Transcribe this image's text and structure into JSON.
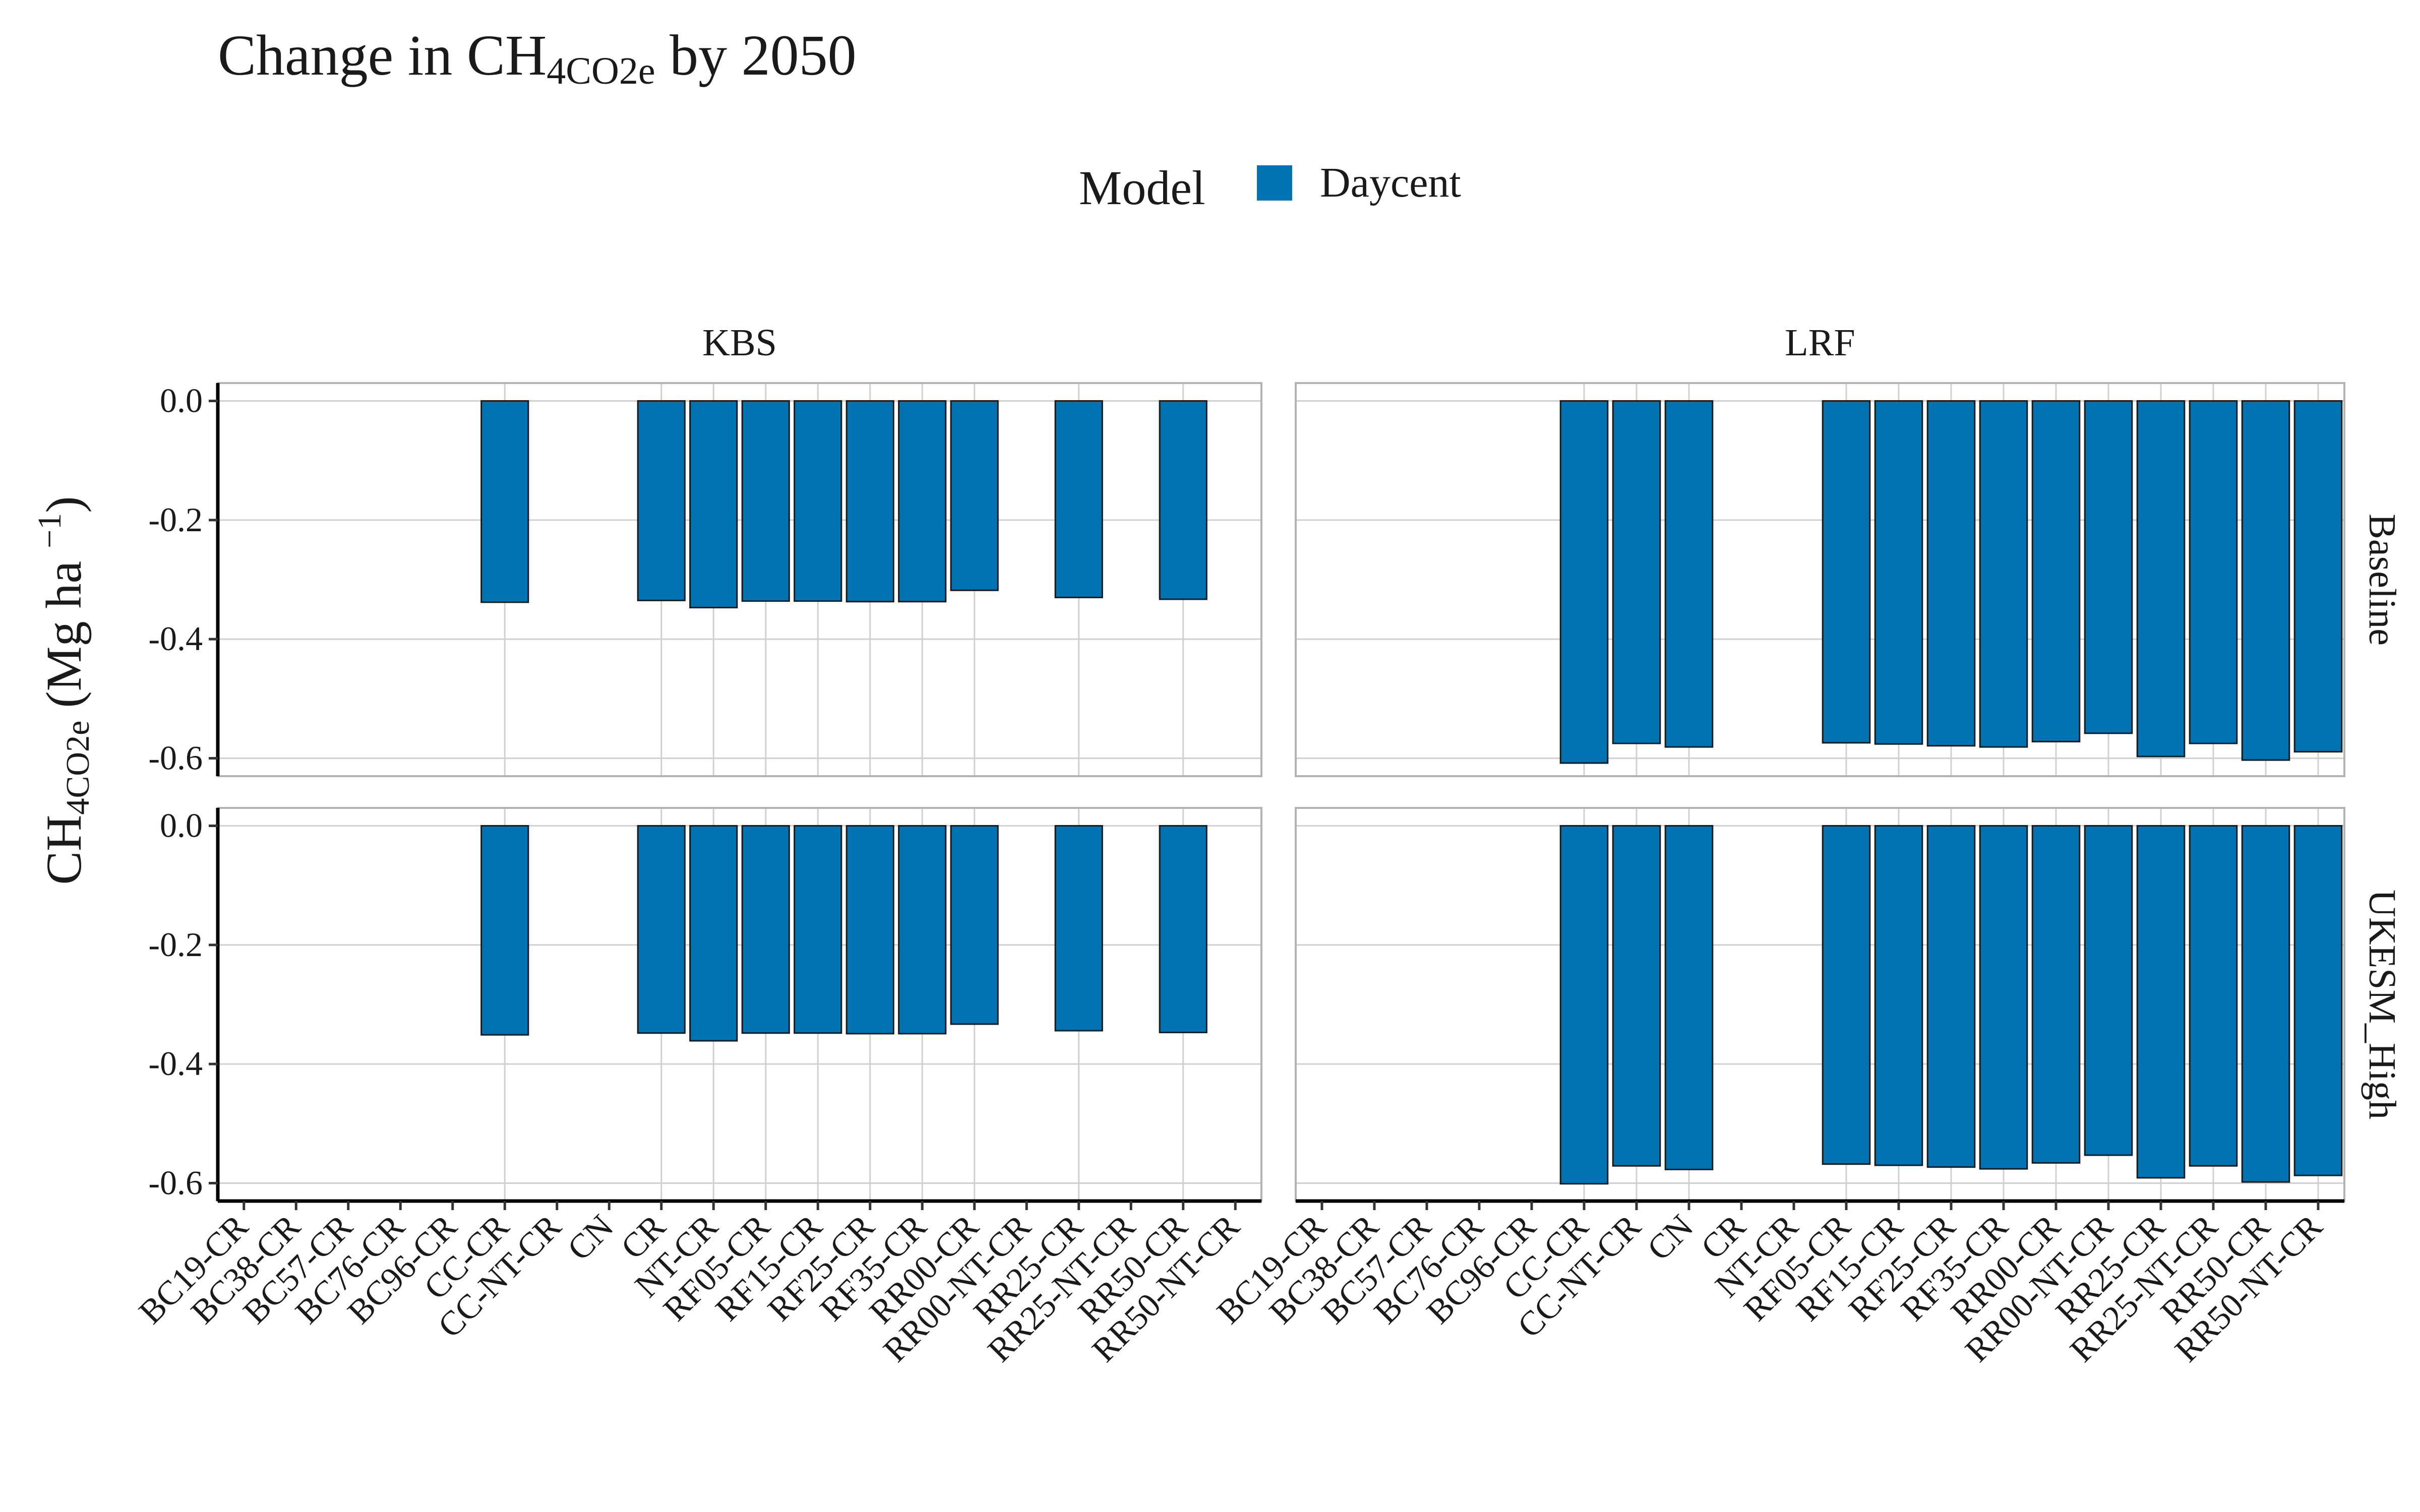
{
  "chart_data": {
    "type": "bar",
    "title": {
      "prefix": "Change in CH",
      "sub": "4CO2e",
      "suffix": " by 2050"
    },
    "ylabel": {
      "prefix": "CH",
      "sub": "4CO2e",
      "middle": " (Mg ha ",
      "sup": "−1",
      "suffix": ")"
    },
    "legend": {
      "title": "Model",
      "entries": [
        {
          "name": "Daycent",
          "color": "#0173b2"
        }
      ],
      "position": "top"
    },
    "facet_columns": [
      "KBS",
      "LRF"
    ],
    "facet_rows": [
      "Baseline",
      "UKESM_High"
    ],
    "categories": [
      "BC19-CR",
      "BC38-CR",
      "BC57-CR",
      "BC76-CR",
      "BC96-CR",
      "CC-CR",
      "CC-NT-CR",
      "CN",
      "CR",
      "NT-CR",
      "RF05-CR",
      "RF15-CR",
      "RF25-CR",
      "RF35-CR",
      "RR00-CR",
      "RR00-NT-CR",
      "RR25-CR",
      "RR25-NT-CR",
      "RR50-CR",
      "RR50-NT-CR"
    ],
    "yticks": [
      0.0,
      -0.2,
      -0.4,
      -0.6
    ],
    "ytick_labels": [
      "0.0",
      "-0.2",
      "-0.4",
      "-0.6"
    ],
    "ylim": [
      -0.63,
      0.03
    ],
    "grid": true,
    "bar_color": "#0173b2",
    "panels": [
      {
        "column": "KBS",
        "row": "Baseline",
        "values": [
          null,
          null,
          null,
          null,
          null,
          -0.338,
          null,
          null,
          -0.335,
          -0.347,
          -0.336,
          -0.336,
          -0.337,
          -0.337,
          -0.318,
          null,
          -0.33,
          null,
          -0.333,
          null
        ]
      },
      {
        "column": "LRF",
        "row": "Baseline",
        "values": [
          null,
          null,
          null,
          null,
          null,
          -0.608,
          -0.575,
          -0.581,
          null,
          null,
          -0.574,
          -0.576,
          -0.579,
          -0.581,
          -0.572,
          -0.558,
          -0.597,
          -0.575,
          -0.603,
          -0.589
        ]
      },
      {
        "column": "KBS",
        "row": "UKESM_High",
        "values": [
          null,
          null,
          null,
          null,
          null,
          -0.351,
          null,
          null,
          -0.348,
          -0.361,
          -0.348,
          -0.348,
          -0.349,
          -0.349,
          -0.333,
          null,
          -0.344,
          null,
          -0.347,
          null
        ]
      },
      {
        "column": "LRF",
        "row": "UKESM_High",
        "values": [
          null,
          null,
          null,
          null,
          null,
          -0.601,
          -0.571,
          -0.577,
          null,
          null,
          -0.568,
          -0.57,
          -0.573,
          -0.576,
          -0.566,
          -0.553,
          -0.591,
          -0.571,
          -0.598,
          -0.587
        ]
      }
    ]
  }
}
